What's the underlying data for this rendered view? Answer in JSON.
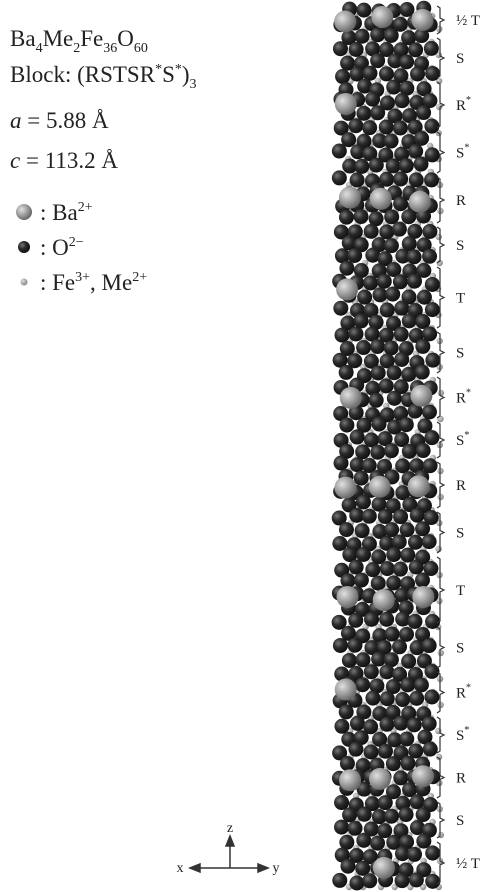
{
  "formula": [
    "Ba",
    "4",
    "Me",
    "2",
    "Fe",
    "36",
    "O",
    "60"
  ],
  "block": [
    "Block: (RSTSR",
    "*",
    "S",
    "*",
    ")",
    "3"
  ],
  "lattice_a": [
    "a",
    " = 5.88 Å"
  ],
  "lattice_c": [
    "c",
    " = 113.2 Å"
  ],
  "legend": [
    [
      ": Ba",
      "2+"
    ],
    [
      ": O",
      "2−"
    ],
    [
      ": Fe",
      "3+",
      ", Me",
      "2+"
    ]
  ],
  "blocks": [
    [
      "½ T"
    ],
    [
      "S"
    ],
    [
      "R",
      "*"
    ],
    [
      "S",
      "*"
    ],
    [
      "R"
    ],
    [
      "S"
    ],
    [
      "T"
    ],
    [
      "S"
    ],
    [
      "R",
      "*"
    ],
    [
      "S",
      "*"
    ],
    [
      "R"
    ],
    [
      "S"
    ],
    [
      "T"
    ],
    [
      "S"
    ],
    [
      "R",
      "*"
    ],
    [
      "S",
      "*"
    ],
    [
      "R"
    ],
    [
      "S"
    ],
    [
      "½ T"
    ]
  ],
  "axes": {
    "z": "z",
    "x": "x",
    "y": "y"
  }
}
